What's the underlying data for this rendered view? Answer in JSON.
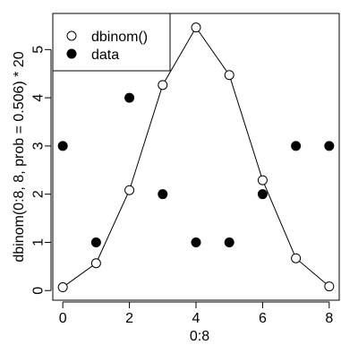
{
  "chart_data": {
    "type": "scatter",
    "title": "",
    "xlabel": "0:8",
    "ylabel": "dbinom(0:8, 8, prob = 0.506) * 20",
    "xlim": [
      -0.3,
      8.3
    ],
    "ylim": [
      -0.2,
      5.75
    ],
    "x_ticks": [
      0,
      2,
      4,
      6,
      8
    ],
    "y_ticks": [
      0,
      1,
      2,
      3,
      4,
      5
    ],
    "grid": false,
    "legend_position": "top-left",
    "x": [
      0,
      1,
      2,
      3,
      4,
      5,
      6,
      7,
      8
    ],
    "series": [
      {
        "name": "dbinom()",
        "style": "open-circle-line",
        "values": [
          0.069,
          0.567,
          2.083,
          4.265,
          5.459,
          4.472,
          2.29,
          0.67,
          0.086
        ]
      },
      {
        "name": "data",
        "style": "filled-circle",
        "values": [
          3,
          1,
          4,
          2,
          1,
          1,
          2,
          3,
          3
        ]
      }
    ],
    "colors": {
      "marker_fill_open": "#ffffff",
      "marker_fill_solid": "#000000",
      "stroke": "#000000"
    }
  }
}
